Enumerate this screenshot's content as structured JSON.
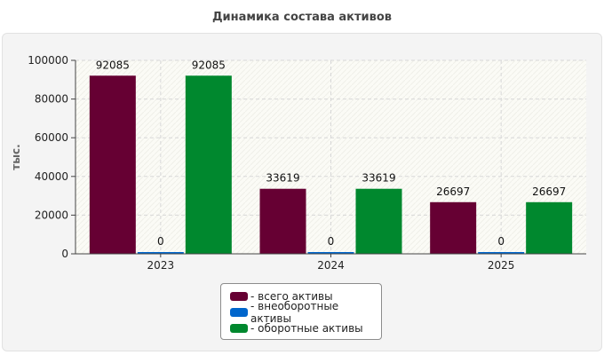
{
  "title": "Динамика состава активов",
  "chart_data": {
    "type": "bar",
    "title": "Динамика состава активов",
    "ylabel": "тыс.",
    "xlabel": "",
    "categories": [
      "2023",
      "2024",
      "2025"
    ],
    "ylim": [
      0,
      100000
    ],
    "yticks": [
      0,
      20000,
      40000,
      60000,
      80000,
      100000
    ],
    "grid": true,
    "legend_position": "bottom",
    "series": [
      {
        "name": "- всего активы",
        "color": "#660033",
        "values": [
          92085,
          33619,
          26697
        ]
      },
      {
        "name": "- внеоборотные активы",
        "color": "#0066cc",
        "values": [
          0,
          0,
          0
        ]
      },
      {
        "name": "- оборотные активы",
        "color": "#00882e",
        "values": [
          92085,
          33619,
          26697
        ]
      }
    ]
  }
}
